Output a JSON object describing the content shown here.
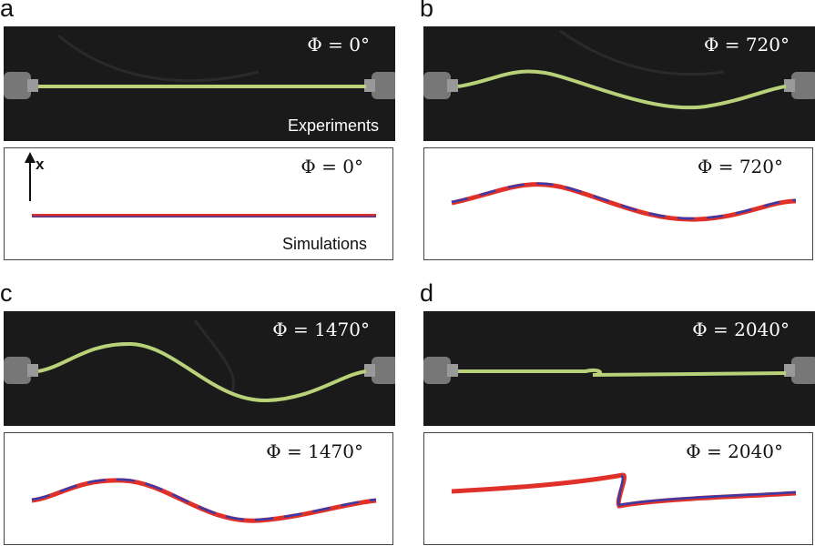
{
  "panels": [
    {
      "letter": "a",
      "phi_exp": "Φ = 0°",
      "phi_sim": "Φ = 0°",
      "exp_caption": "Experiments",
      "sim_caption": "Simulations",
      "axis_label": "x"
    },
    {
      "letter": "b",
      "phi_exp": "Φ = 720°",
      "phi_sim": "Φ = 720°"
    },
    {
      "letter": "c",
      "phi_exp": "Φ = 1470°",
      "phi_sim": "Φ = 1470°"
    },
    {
      "letter": "d",
      "phi_exp": "Φ = 2040°",
      "phi_sim": "Φ = 2040°"
    }
  ],
  "colors": {
    "rod_experiment": "#b9d27a",
    "sim_red": "#e0302a",
    "sim_blue": "#3a3aa8",
    "background_dark": "#1a1a1a"
  }
}
